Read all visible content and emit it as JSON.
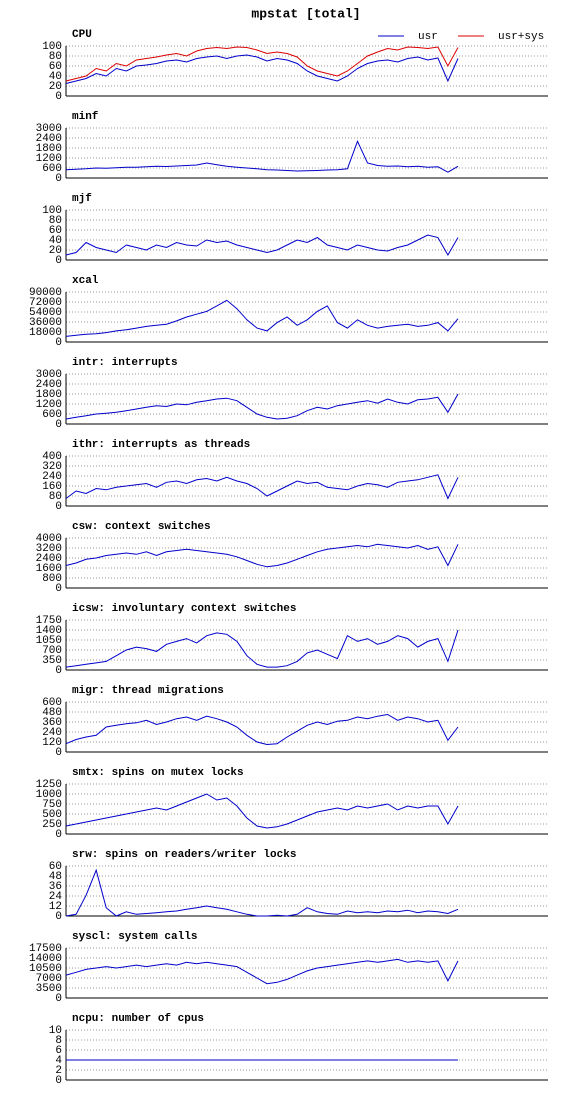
{
  "title": "mpstat [total]",
  "chart_data": [
    {
      "type": "line",
      "title": "CPU",
      "ylim": [
        0,
        100
      ],
      "yticks": [
        0,
        20,
        40,
        60,
        80,
        100
      ],
      "grid": true,
      "legend": "top-right",
      "series": [
        {
          "name": "usr",
          "color": "#0000cc",
          "values": [
            25,
            30,
            35,
            45,
            40,
            55,
            50,
            60,
            62,
            65,
            70,
            72,
            68,
            75,
            78,
            80,
            75,
            80,
            82,
            78,
            70,
            75,
            72,
            65,
            50,
            40,
            35,
            30,
            40,
            55,
            65,
            70,
            72,
            68,
            75,
            78,
            72,
            76,
            30,
            75
          ]
        },
        {
          "name": "usr+sys",
          "color": "#dd0000",
          "values": [
            30,
            35,
            40,
            55,
            50,
            65,
            60,
            72,
            75,
            78,
            82,
            85,
            80,
            90,
            95,
            97,
            95,
            98,
            97,
            92,
            85,
            88,
            85,
            78,
            60,
            50,
            45,
            40,
            50,
            65,
            80,
            88,
            95,
            92,
            98,
            97,
            95,
            98,
            60,
            97
          ]
        }
      ]
    },
    {
      "type": "line",
      "title": "minf",
      "ylim": [
        0,
        3000
      ],
      "yticks": [
        0,
        600,
        1200,
        1800,
        2400,
        3000
      ],
      "grid": true,
      "series": [
        {
          "color": "#0000cc",
          "values": [
            500,
            520,
            550,
            600,
            580,
            620,
            650,
            640,
            680,
            700,
            690,
            720,
            750,
            780,
            900,
            800,
            700,
            650,
            600,
            550,
            500,
            480,
            450,
            420,
            430,
            450,
            480,
            500,
            550,
            2200,
            900,
            750,
            700,
            720,
            680,
            700,
            650,
            680,
            350,
            700
          ]
        }
      ]
    },
    {
      "type": "line",
      "title": "mjf",
      "ylim": [
        0,
        100
      ],
      "yticks": [
        0,
        20,
        40,
        60,
        80,
        100
      ],
      "grid": true,
      "series": [
        {
          "color": "#0000cc",
          "values": [
            10,
            15,
            35,
            25,
            20,
            15,
            30,
            25,
            20,
            30,
            25,
            35,
            30,
            28,
            40,
            35,
            38,
            30,
            25,
            20,
            15,
            20,
            30,
            40,
            35,
            45,
            30,
            25,
            20,
            30,
            25,
            20,
            18,
            25,
            30,
            40,
            50,
            45,
            10,
            45
          ]
        }
      ]
    },
    {
      "type": "line",
      "title": "xcal",
      "ylim": [
        0,
        90000
      ],
      "yticks": [
        0,
        18000,
        36000,
        54000,
        72000,
        90000
      ],
      "grid": true,
      "series": [
        {
          "color": "#0000cc",
          "values": [
            10000,
            12000,
            14000,
            15000,
            17000,
            20000,
            22000,
            25000,
            28000,
            30000,
            32000,
            38000,
            45000,
            50000,
            55000,
            65000,
            75000,
            60000,
            40000,
            25000,
            20000,
            35000,
            45000,
            30000,
            40000,
            55000,
            65000,
            35000,
            25000,
            40000,
            30000,
            25000,
            28000,
            30000,
            32000,
            28000,
            30000,
            35000,
            20000,
            42000
          ]
        }
      ]
    },
    {
      "type": "line",
      "title": "intr: interrupts",
      "ylim": [
        0,
        3000
      ],
      "yticks": [
        0,
        600,
        1200,
        1800,
        2400,
        3000
      ],
      "grid": true,
      "series": [
        {
          "color": "#0000cc",
          "values": [
            300,
            400,
            500,
            600,
            650,
            700,
            800,
            900,
            1000,
            1100,
            1050,
            1200,
            1150,
            1300,
            1400,
            1500,
            1550,
            1400,
            1000,
            600,
            400,
            300,
            350,
            500,
            800,
            1000,
            900,
            1100,
            1200,
            1300,
            1400,
            1250,
            1500,
            1300,
            1200,
            1450,
            1500,
            1600,
            700,
            1800
          ]
        }
      ]
    },
    {
      "type": "line",
      "title": "ithr: interrupts as threads",
      "ylim": [
        0,
        400
      ],
      "yticks": [
        0,
        80,
        160,
        240,
        320,
        400
      ],
      "grid": true,
      "series": [
        {
          "color": "#0000cc",
          "values": [
            60,
            120,
            100,
            140,
            130,
            150,
            160,
            170,
            180,
            150,
            190,
            200,
            180,
            210,
            220,
            200,
            230,
            200,
            180,
            140,
            80,
            120,
            160,
            200,
            180,
            190,
            150,
            140,
            130,
            160,
            180,
            170,
            150,
            190,
            200,
            210,
            230,
            250,
            60,
            230
          ]
        }
      ]
    },
    {
      "type": "line",
      "title": "csw: context switches",
      "ylim": [
        0,
        4000
      ],
      "yticks": [
        0,
        800,
        1600,
        2400,
        3200,
        4000
      ],
      "grid": true,
      "series": [
        {
          "color": "#0000cc",
          "values": [
            1800,
            2000,
            2300,
            2400,
            2600,
            2700,
            2800,
            2700,
            2900,
            2600,
            2900,
            3000,
            3100,
            3000,
            2900,
            2800,
            2700,
            2500,
            2200,
            1900,
            1700,
            1800,
            2000,
            2300,
            2600,
            2900,
            3100,
            3200,
            3300,
            3400,
            3300,
            3500,
            3400,
            3300,
            3200,
            3400,
            3100,
            3300,
            1800,
            3500
          ]
        }
      ]
    },
    {
      "type": "line",
      "title": "icsw: involuntary context switches",
      "ylim": [
        0,
        1750
      ],
      "yticks": [
        0,
        350,
        700,
        1050,
        1400,
        1750
      ],
      "grid": true,
      "series": [
        {
          "color": "#0000cc",
          "values": [
            100,
            150,
            200,
            250,
            300,
            500,
            700,
            800,
            750,
            650,
            900,
            1000,
            1100,
            950,
            1200,
            1300,
            1250,
            1000,
            500,
            200,
            100,
            100,
            150,
            300,
            600,
            700,
            550,
            400,
            1200,
            1000,
            1100,
            900,
            1000,
            1200,
            1100,
            800,
            1000,
            1100,
            300,
            1400
          ]
        }
      ]
    },
    {
      "type": "line",
      "title": "migr: thread migrations",
      "ylim": [
        0,
        600
      ],
      "yticks": [
        0,
        120,
        240,
        360,
        480,
        600
      ],
      "grid": true,
      "series": [
        {
          "color": "#0000cc",
          "values": [
            100,
            150,
            180,
            200,
            300,
            320,
            340,
            350,
            380,
            330,
            360,
            400,
            420,
            380,
            430,
            400,
            360,
            300,
            200,
            120,
            90,
            100,
            180,
            250,
            320,
            360,
            330,
            370,
            380,
            420,
            400,
            430,
            450,
            380,
            420,
            400,
            360,
            380,
            140,
            300
          ]
        }
      ]
    },
    {
      "type": "line",
      "title": "smtx: spins on mutex locks",
      "ylim": [
        0,
        1250
      ],
      "yticks": [
        0,
        250,
        500,
        750,
        1000,
        1250
      ],
      "grid": true,
      "series": [
        {
          "color": "#0000cc",
          "values": [
            200,
            250,
            300,
            350,
            400,
            450,
            500,
            550,
            600,
            650,
            600,
            700,
            800,
            900,
            1000,
            850,
            900,
            700,
            400,
            200,
            150,
            180,
            250,
            350,
            450,
            550,
            600,
            650,
            600,
            700,
            650,
            700,
            750,
            600,
            700,
            650,
            700,
            700,
            250,
            700
          ]
        }
      ]
    },
    {
      "type": "line",
      "title": "srw: spins on readers/writer locks",
      "ylim": [
        0,
        60
      ],
      "yticks": [
        0,
        12,
        24,
        36,
        48,
        60
      ],
      "grid": true,
      "series": [
        {
          "color": "#0000cc",
          "values": [
            0,
            2,
            25,
            55,
            10,
            0,
            5,
            2,
            3,
            4,
            5,
            6,
            8,
            10,
            12,
            10,
            8,
            5,
            2,
            0,
            0,
            1,
            0,
            2,
            10,
            5,
            3,
            2,
            6,
            4,
            5,
            4,
            6,
            5,
            7,
            4,
            6,
            5,
            3,
            8
          ]
        }
      ]
    },
    {
      "type": "line",
      "title": "syscl: system calls",
      "ylim": [
        0,
        17500
      ],
      "yticks": [
        0,
        3500,
        7000,
        10500,
        14000,
        17500
      ],
      "grid": true,
      "series": [
        {
          "color": "#0000cc",
          "values": [
            8000,
            9000,
            10000,
            10500,
            11000,
            10500,
            11000,
            11500,
            11000,
            11500,
            12000,
            11500,
            12500,
            12000,
            12500,
            12000,
            11500,
            11000,
            9000,
            7000,
            5000,
            5500,
            6500,
            8000,
            9500,
            10500,
            11000,
            11500,
            12000,
            12500,
            13000,
            12500,
            13000,
            13500,
            12500,
            13000,
            12500,
            13000,
            6000,
            13000
          ]
        }
      ]
    },
    {
      "type": "line",
      "title": "ncpu: number of cpus",
      "ylim": [
        0,
        10
      ],
      "yticks": [
        0,
        2,
        4,
        6,
        8,
        10
      ],
      "grid": true,
      "series": [
        {
          "color": "#0000cc",
          "values": [
            4,
            4,
            4,
            4,
            4,
            4,
            4,
            4,
            4,
            4,
            4,
            4,
            4,
            4,
            4,
            4,
            4,
            4,
            4,
            4,
            4,
            4,
            4,
            4,
            4,
            4,
            4,
            4,
            4,
            4,
            4,
            4,
            4,
            4,
            4,
            4,
            4,
            4,
            4,
            4
          ]
        }
      ]
    }
  ]
}
